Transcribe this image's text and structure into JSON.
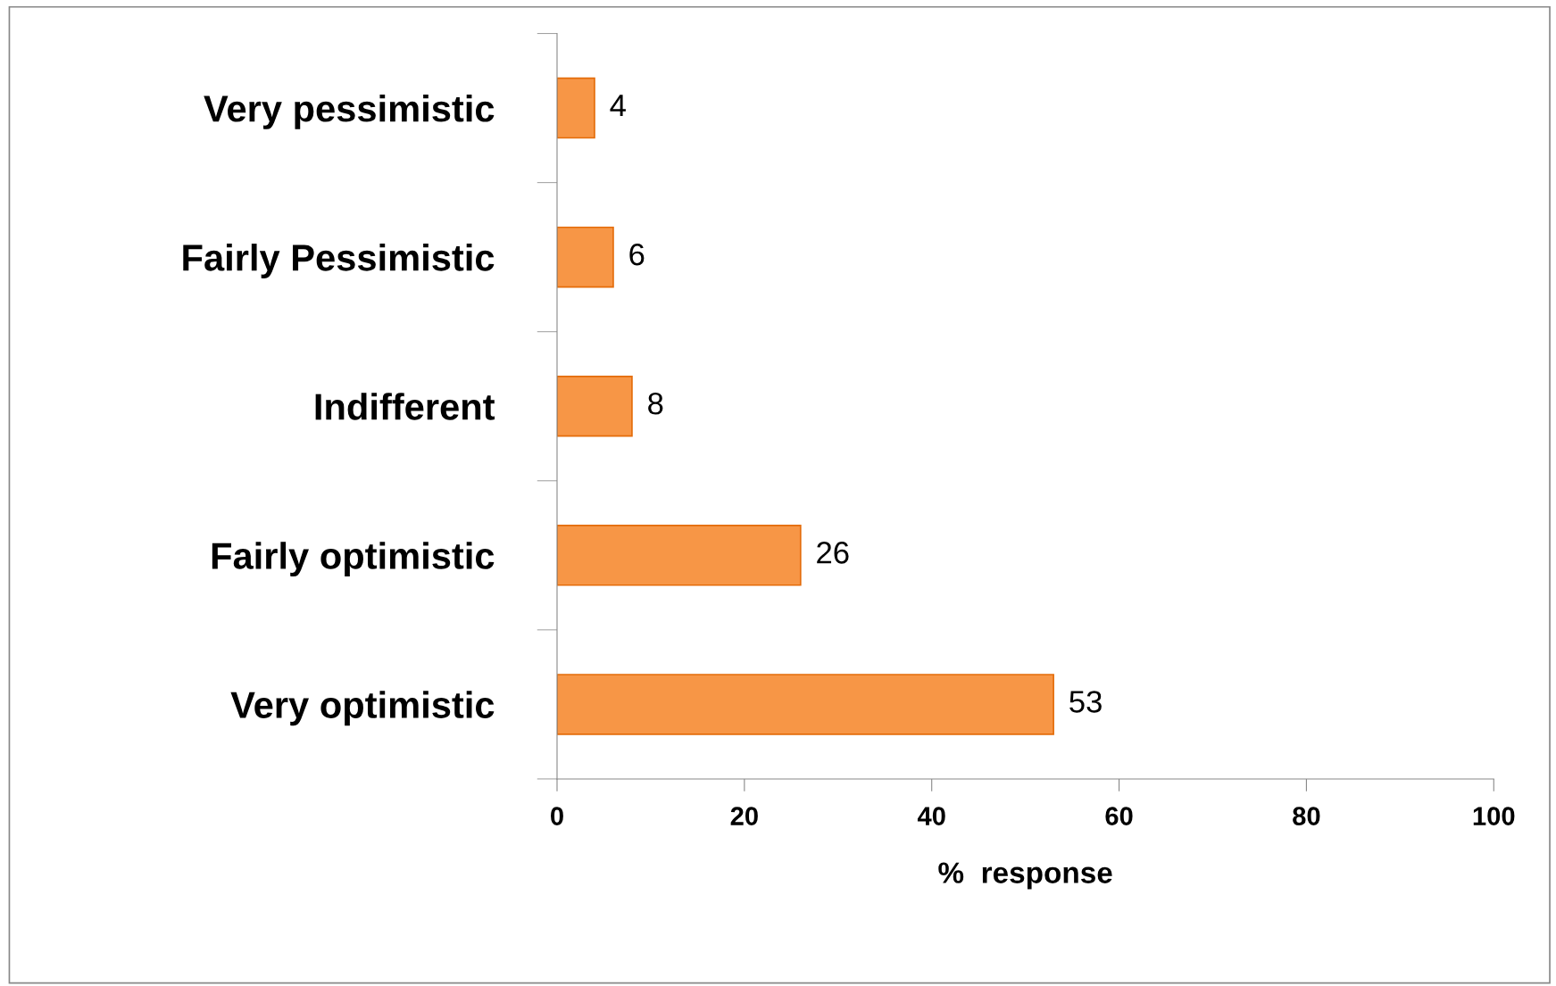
{
  "chart_data": {
    "type": "bar",
    "orientation": "horizontal",
    "xlabel": "%  response",
    "categories": [
      "Very pessimistic",
      "Fairly Pessimistic",
      "Indifferent",
      "Fairly optimistic",
      "Very optimistic"
    ],
    "values": [
      4,
      6,
      8,
      26,
      53
    ],
    "color": "#f79646",
    "xlim": [
      0,
      100
    ],
    "xticks": [
      0,
      20,
      40,
      60,
      80,
      100
    ],
    "grid": false,
    "legend": false,
    "data_labels": true
  }
}
